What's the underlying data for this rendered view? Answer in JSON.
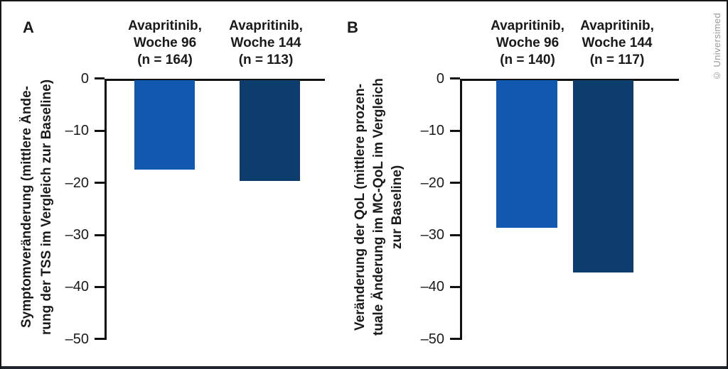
{
  "copyright": "© Universimed",
  "colors": {
    "bar_week96": "#1058b0",
    "bar_week144": "#0d3d6c",
    "axis": "#111111",
    "bottom_bar": "#20242c",
    "copyright_text": "#999999"
  },
  "chart_data": [
    {
      "type": "bar",
      "panel": "A",
      "ylabel": "Symptomveränderung (mittlere Änderung der TSS im Vergleich zur Baseline)",
      "ylabel_lines": [
        "Symptomveränderung (mittlere Ände-",
        "rung der TSS im Vergleich zur Baseline)"
      ],
      "categories": [
        "Avapritinib, Woche 96 (n = 164)",
        "Avapritinib, Woche 144 (n = 113)"
      ],
      "category_lines": [
        [
          "Avapritinib,",
          "Woche 96",
          "(n = 164)"
        ],
        [
          "Avapritinib,",
          "Woche 144",
          "(n = 113)"
        ]
      ],
      "values": [
        -17.4,
        -19.7
      ],
      "bar_colors": [
        "#1058b0",
        "#0d3d6c"
      ],
      "ylim": [
        -50,
        0
      ],
      "yticks": [
        0,
        -10,
        -20,
        -30,
        -40,
        -50
      ],
      "ytick_labels": [
        "0",
        "–10",
        "–20",
        "–30",
        "–40",
        "–50"
      ],
      "grid": false,
      "legend": "none"
    },
    {
      "type": "bar",
      "panel": "B",
      "ylabel": "Veränderung der QoL (mittlere prozentuale Änderung im MC-QoL im Vergleich zur Baseline)",
      "ylabel_lines": [
        "Veränderung der QoL (mittlere prozen-",
        "tuale Änderung im MC-QoL im Vergleich",
        "zur Baseline)"
      ],
      "categories": [
        "Avapritinib, Woche 96 (n = 140)",
        "Avapritinib, Woche 144 (n = 117)"
      ],
      "category_lines": [
        [
          "Avapritinib,",
          "Woche 96",
          "(n = 140)"
        ],
        [
          "Avapritinib,",
          "Woche 144",
          "(n = 117)"
        ]
      ],
      "values": [
        -28.6,
        -37.2
      ],
      "bar_colors": [
        "#1058b0",
        "#0d3d6c"
      ],
      "ylim": [
        -50,
        0
      ],
      "yticks": [
        0,
        -10,
        -20,
        -30,
        -40,
        -50
      ],
      "ytick_labels": [
        "0",
        "–10",
        "–20",
        "–30",
        "–40",
        "–50"
      ],
      "grid": false,
      "legend": "none"
    }
  ]
}
